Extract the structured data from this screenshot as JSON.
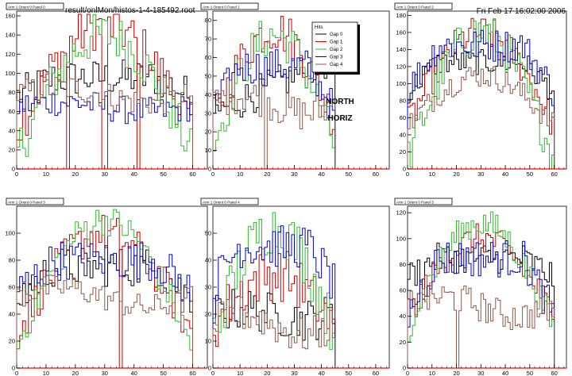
{
  "header": {
    "file": "result/onlMon/histos-1-4-185492.root",
    "date": "Fri Feb 17 16:02:00 2006"
  },
  "annotation": [
    "NORTH",
    "HORIZ"
  ],
  "colors": {
    "gap0": "#000000",
    "gap1": "#cc0000",
    "gap2": "#33bb33",
    "gap3": "#0000cc",
    "gap4": "#8b5a4a",
    "axis": "#000000",
    "zero_line": "#ff0000"
  },
  "legend": {
    "title": "Hits",
    "entries": [
      "Gap 0",
      "Gap 1",
      "Gap 2",
      "Gap 3",
      "Gap 4"
    ]
  },
  "chart_data": [
    {
      "type": "line",
      "title": "Arm 1 Orient 0 Panel 0",
      "xlim": [
        0,
        65
      ],
      "ylim": [
        0,
        165
      ],
      "xticks": [
        0,
        10,
        20,
        30,
        40,
        50,
        60
      ],
      "yticks": [
        0,
        20,
        40,
        60,
        80,
        100,
        120,
        140,
        160
      ],
      "x_bins": [
        0,
        60
      ],
      "series": [
        {
          "shape": "plateau",
          "peak": 95,
          "edge": 75,
          "noise": 20
        },
        {
          "shape": "hump",
          "peak": 150,
          "edge": 40,
          "noise": 25,
          "drops": [
            17,
            29,
            30,
            41
          ]
        },
        {
          "shape": "hump",
          "peak": 140,
          "edge": 15,
          "noise": 25
        },
        {
          "shape": "flat",
          "peak": 70,
          "edge": 60,
          "noise": 15
        },
        {
          "shape": "flat",
          "peak": 85,
          "edge": 70,
          "noise": 15
        }
      ]
    },
    {
      "type": "line",
      "title": "Arm 1 Orient 0 Panel 1",
      "xlim": [
        0,
        65
      ],
      "ylim": [
        0,
        85
      ],
      "xticks": [
        0,
        10,
        20,
        30,
        40,
        50,
        60
      ],
      "yticks": [
        0,
        10,
        20,
        30,
        40,
        50,
        60,
        70,
        80
      ],
      "x_bins": [
        0,
        45
      ],
      "series": [
        {
          "shape": "rise",
          "peak": 60,
          "edge": 30,
          "noise": 10
        },
        {
          "shape": "hump",
          "peak": 75,
          "edge": 25,
          "noise": 12
        },
        {
          "shape": "hump",
          "peak": 72,
          "edge": 12,
          "noise": 12
        },
        {
          "shape": "plateau",
          "peak": 55,
          "edge": 30,
          "noise": 10
        },
        {
          "shape": "flat",
          "peak": 40,
          "edge": 30,
          "noise": 10,
          "drops": [
            19
          ]
        }
      ]
    },
    {
      "type": "line",
      "title": "Arm 1 Orient 0 Panel 2",
      "xlim": [
        0,
        65
      ],
      "ylim": [
        0,
        185
      ],
      "xticks": [
        0,
        10,
        20,
        30,
        40,
        50,
        60
      ],
      "yticks": [
        0,
        20,
        40,
        60,
        80,
        100,
        120,
        140,
        160,
        180
      ],
      "x_bins": [
        0,
        60
      ],
      "series": [
        {
          "shape": "plateau",
          "peak": 125,
          "edge": 90,
          "noise": 15
        },
        {
          "shape": "hump",
          "peak": 160,
          "edge": 50,
          "noise": 20
        },
        {
          "shape": "hump",
          "peak": 160,
          "edge": 10,
          "noise": 25
        },
        {
          "shape": "plateau",
          "peak": 145,
          "edge": 90,
          "noise": 20
        },
        {
          "shape": "hump",
          "peak": 110,
          "edge": 50,
          "noise": 15
        }
      ]
    },
    {
      "type": "line",
      "title": "Arm 1 Orient 0 Panel 3",
      "xlim": [
        0,
        65
      ],
      "ylim": [
        0,
        120
      ],
      "xticks": [
        0,
        10,
        20,
        30,
        40,
        50,
        60
      ],
      "yticks": [
        0,
        20,
        40,
        60,
        80,
        100
      ],
      "x_bins": [
        0,
        60
      ],
      "series": [
        {
          "shape": "plateau",
          "peak": 75,
          "edge": 50,
          "noise": 15
        },
        {
          "shape": "hump",
          "peak": 100,
          "edge": 25,
          "noise": 15,
          "drops": [
            35
          ]
        },
        {
          "shape": "hump",
          "peak": 110,
          "edge": 15,
          "noise": 12
        },
        {
          "shape": "plateau",
          "peak": 80,
          "edge": 55,
          "noise": 15
        },
        {
          "shape": "flat",
          "peak": 60,
          "edge": 45,
          "noise": 10
        }
      ]
    },
    {
      "type": "line",
      "title": "Arm 1 Orient 0 Panel 4",
      "xlim": [
        0,
        65
      ],
      "ylim": [
        0,
        60
      ],
      "xticks": [
        0,
        10,
        20,
        30,
        40,
        50,
        60
      ],
      "yticks": [
        0,
        10,
        20,
        30,
        40,
        50
      ],
      "x_bins": [
        0,
        45
      ],
      "series": [
        {
          "shape": "flat",
          "peak": 22,
          "edge": 18,
          "noise": 8
        },
        {
          "shape": "hump",
          "peak": 35,
          "edge": 15,
          "noise": 10
        },
        {
          "shape": "hump",
          "peak": 52,
          "edge": 12,
          "noise": 10
        },
        {
          "shape": "plateau",
          "peak": 45,
          "edge": 30,
          "noise": 8
        },
        {
          "shape": "flat",
          "peak": 20,
          "edge": 12,
          "noise": 7
        }
      ]
    },
    {
      "type": "line",
      "title": "Arm 1 Orient 0 Panel 3",
      "xlim": [
        0,
        65
      ],
      "ylim": [
        0,
        125
      ],
      "xticks": [
        0,
        10,
        20,
        30,
        40,
        50,
        60
      ],
      "yticks": [
        0,
        20,
        40,
        60,
        80,
        100,
        120
      ],
      "x_bins": [
        0,
        60
      ],
      "series": [
        {
          "shape": "plateau",
          "peak": 85,
          "edge": 70,
          "noise": 12
        },
        {
          "shape": "hump",
          "peak": 100,
          "edge": 40,
          "noise": 12
        },
        {
          "shape": "hump",
          "peak": 112,
          "edge": 30,
          "noise": 12
        },
        {
          "shape": "plateau",
          "peak": 85,
          "edge": 40,
          "noise": 15
        },
        {
          "shape": "flat",
          "peak": 55,
          "edge": 40,
          "noise": 12,
          "drops": [
            20
          ]
        }
      ]
    }
  ]
}
